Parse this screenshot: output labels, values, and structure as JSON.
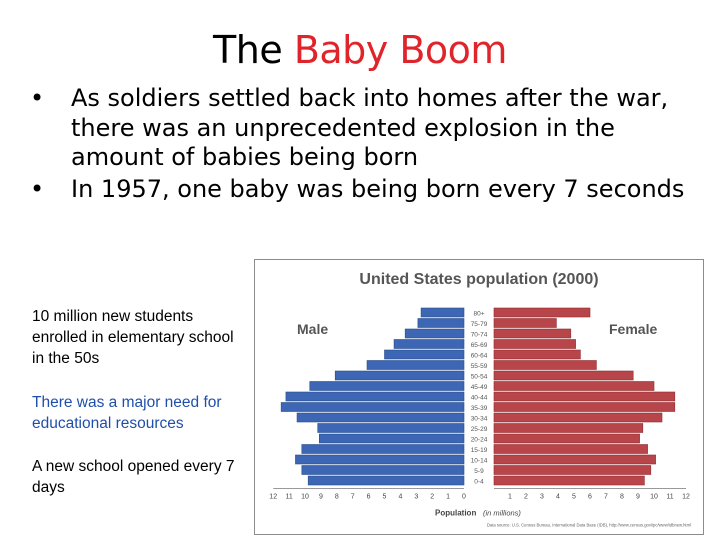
{
  "slide": {
    "title_part1": "The",
    "title_part2": "Baby Boom",
    "bullets": [
      "As soldiers settled back into homes after the war, there was an unprecedented explosion in the amount of babies being born",
      "In 1957, one baby was being born every 7 seconds"
    ],
    "notes": [
      "10 million new students enrolled in elementary school in the 50s",
      "There was a major need for educational resources",
      "A new school opened every 7 days"
    ],
    "colors": {
      "accent": "#e0242b",
      "note_blue": "#1f4eab"
    }
  },
  "chart_data": {
    "type": "bar",
    "orientation": "horizontal-pyramid",
    "title": "United States population (2000)",
    "xlabel_main": "Population",
    "xlabel_unit": "(in millions)",
    "source": "Data source: U.S. Census Bureau, International Data Base (IDB), http://www.census.gov/ipc/www/idbnew.html",
    "categories": [
      "80+",
      "75-79",
      "70-74",
      "65-69",
      "60-64",
      "55-59",
      "50-54",
      "45-49",
      "40-44",
      "35-39",
      "30-34",
      "25-29",
      "20-24",
      "15-19",
      "10-14",
      "5-9",
      "0-4"
    ],
    "series": [
      {
        "name": "Male",
        "color": "#3d67b5",
        "values": [
          2.7,
          2.9,
          3.7,
          4.4,
          5.0,
          6.1,
          8.1,
          9.7,
          11.2,
          11.5,
          10.5,
          9.2,
          9.1,
          10.2,
          10.6,
          10.2,
          9.8
        ]
      },
      {
        "name": "Female",
        "color": "#b8454a",
        "values": [
          6.0,
          3.9,
          4.8,
          5.1,
          5.4,
          6.4,
          8.7,
          10.0,
          11.3,
          11.3,
          10.5,
          9.3,
          9.1,
          9.6,
          10.1,
          9.8,
          9.4
        ]
      }
    ],
    "xticks": [
      12,
      11,
      10,
      9,
      8,
      7,
      6,
      5,
      4,
      3,
      2,
      1,
      0,
      1,
      2,
      3,
      4,
      5,
      6,
      7,
      8,
      9,
      10,
      11,
      12
    ],
    "xlim": [
      0,
      12
    ],
    "grid": false,
    "legend": "inside-top"
  }
}
